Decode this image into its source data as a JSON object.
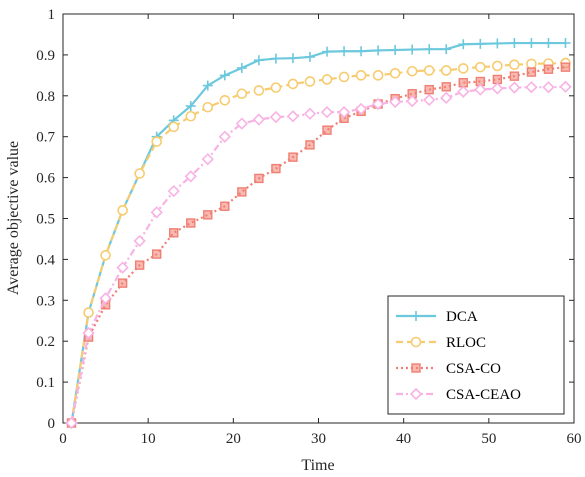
{
  "chart_data": {
    "type": "line",
    "xlabel": "Time",
    "ylabel": "Average objective value",
    "xlim": [
      0,
      60
    ],
    "ylim": [
      0,
      1
    ],
    "xticks": [
      "0",
      "10",
      "20",
      "30",
      "40",
      "50",
      "60"
    ],
    "yticks": [
      "0",
      "0.1",
      "0.2",
      "0.3",
      "0.4",
      "0.5",
      "0.6",
      "0.7",
      "0.8",
      "0.9",
      "1"
    ],
    "grid": false,
    "legend_position": "bottom-right",
    "x": [
      1,
      3,
      5,
      7,
      9,
      11,
      13,
      15,
      17,
      19,
      21,
      23,
      25,
      27,
      29,
      31,
      33,
      35,
      37,
      39,
      41,
      43,
      45,
      47,
      49,
      51,
      53,
      55,
      57,
      59
    ],
    "series": [
      {
        "name": "DCA",
        "color": "#6cc8dc",
        "marker": "plus",
        "dash": "solid",
        "values": [
          0.0,
          0.27,
          0.41,
          0.52,
          0.61,
          0.7,
          0.74,
          0.775,
          0.825,
          0.85,
          0.868,
          0.887,
          0.891,
          0.892,
          0.895,
          0.908,
          0.909,
          0.909,
          0.911,
          0.912,
          0.913,
          0.914,
          0.914,
          0.926,
          0.927,
          0.928,
          0.929,
          0.929,
          0.929,
          0.929
        ]
      },
      {
        "name": "RLOC",
        "color": "#f7cc70",
        "marker": "circle",
        "dash": "dashed",
        "values": [
          0.0,
          0.27,
          0.41,
          0.52,
          0.61,
          0.688,
          0.724,
          0.75,
          0.772,
          0.789,
          0.805,
          0.813,
          0.82,
          0.829,
          0.835,
          0.84,
          0.846,
          0.85,
          0.85,
          0.855,
          0.86,
          0.862,
          0.862,
          0.867,
          0.87,
          0.873,
          0.876,
          0.878,
          0.879,
          0.88
        ]
      },
      {
        "name": "CSA-CO",
        "color": "#f07f73",
        "marker": "square",
        "dash": "dotted",
        "values": [
          0.0,
          0.21,
          0.289,
          0.342,
          0.386,
          0.413,
          0.465,
          0.489,
          0.509,
          0.53,
          0.565,
          0.598,
          0.622,
          0.65,
          0.68,
          0.716,
          0.745,
          0.762,
          0.78,
          0.793,
          0.805,
          0.815,
          0.822,
          0.832,
          0.835,
          0.84,
          0.848,
          0.858,
          0.865,
          0.87
        ]
      },
      {
        "name": "CSA-CEAO",
        "color": "#f7b3e3",
        "marker": "diamond",
        "dash": "dashdot",
        "values": [
          0.0,
          0.22,
          0.305,
          0.38,
          0.445,
          0.515,
          0.567,
          0.603,
          0.645,
          0.7,
          0.732,
          0.742,
          0.748,
          0.75,
          0.756,
          0.76,
          0.76,
          0.768,
          0.78,
          0.785,
          0.787,
          0.79,
          0.795,
          0.81,
          0.815,
          0.818,
          0.82,
          0.821,
          0.821,
          0.822
        ]
      }
    ]
  }
}
